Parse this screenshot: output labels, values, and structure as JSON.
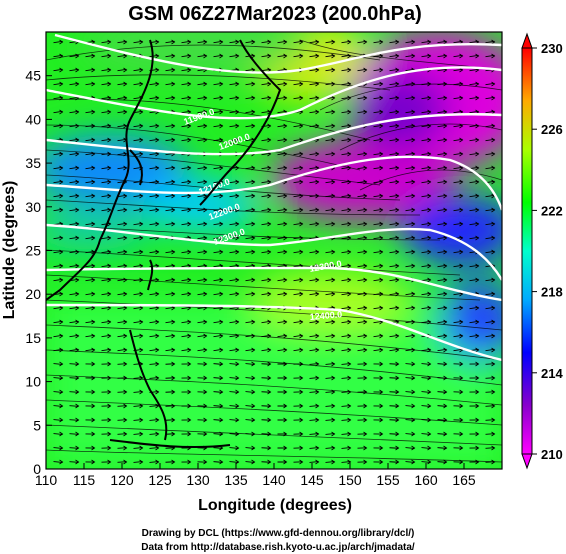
{
  "title": "GSM 06Z27Mar2023 (200.0hPa)",
  "xlabel": "Longitude (degrees)",
  "ylabel": "Latitude  (degrees)",
  "x_ticks": [
    "110",
    "115",
    "120",
    "125",
    "130",
    "135",
    "140",
    "145",
    "150",
    "155",
    "160",
    "165"
  ],
  "y_ticks": [
    "0",
    "5",
    "10",
    "15",
    "20",
    "25",
    "30",
    "35",
    "40",
    "45"
  ],
  "colorbar_ticks": [
    "230",
    "226",
    "222",
    "218",
    "214",
    "210"
  ],
  "credits": {
    "line1": "Drawing by DCL (https://www.gfd-dennou.org/library/dcl/)",
    "line2": "Data from http://database.rish.kyoto-u.ac.jp/arch/jmadata/"
  },
  "contour_labels": [
    "11900.0",
    "12000.0",
    "12100.0",
    "12200.0",
    "12300.0",
    "12300.0",
    "12400.0"
  ],
  "chart_data": {
    "type": "heatmap",
    "xlim": [
      110,
      170
    ],
    "ylim": [
      0,
      50
    ],
    "colorbar_range": [
      210,
      230
    ],
    "colors": {
      "low": "#ff00ff",
      "mid": "#00ff00",
      "high": "#ff0000"
    }
  }
}
